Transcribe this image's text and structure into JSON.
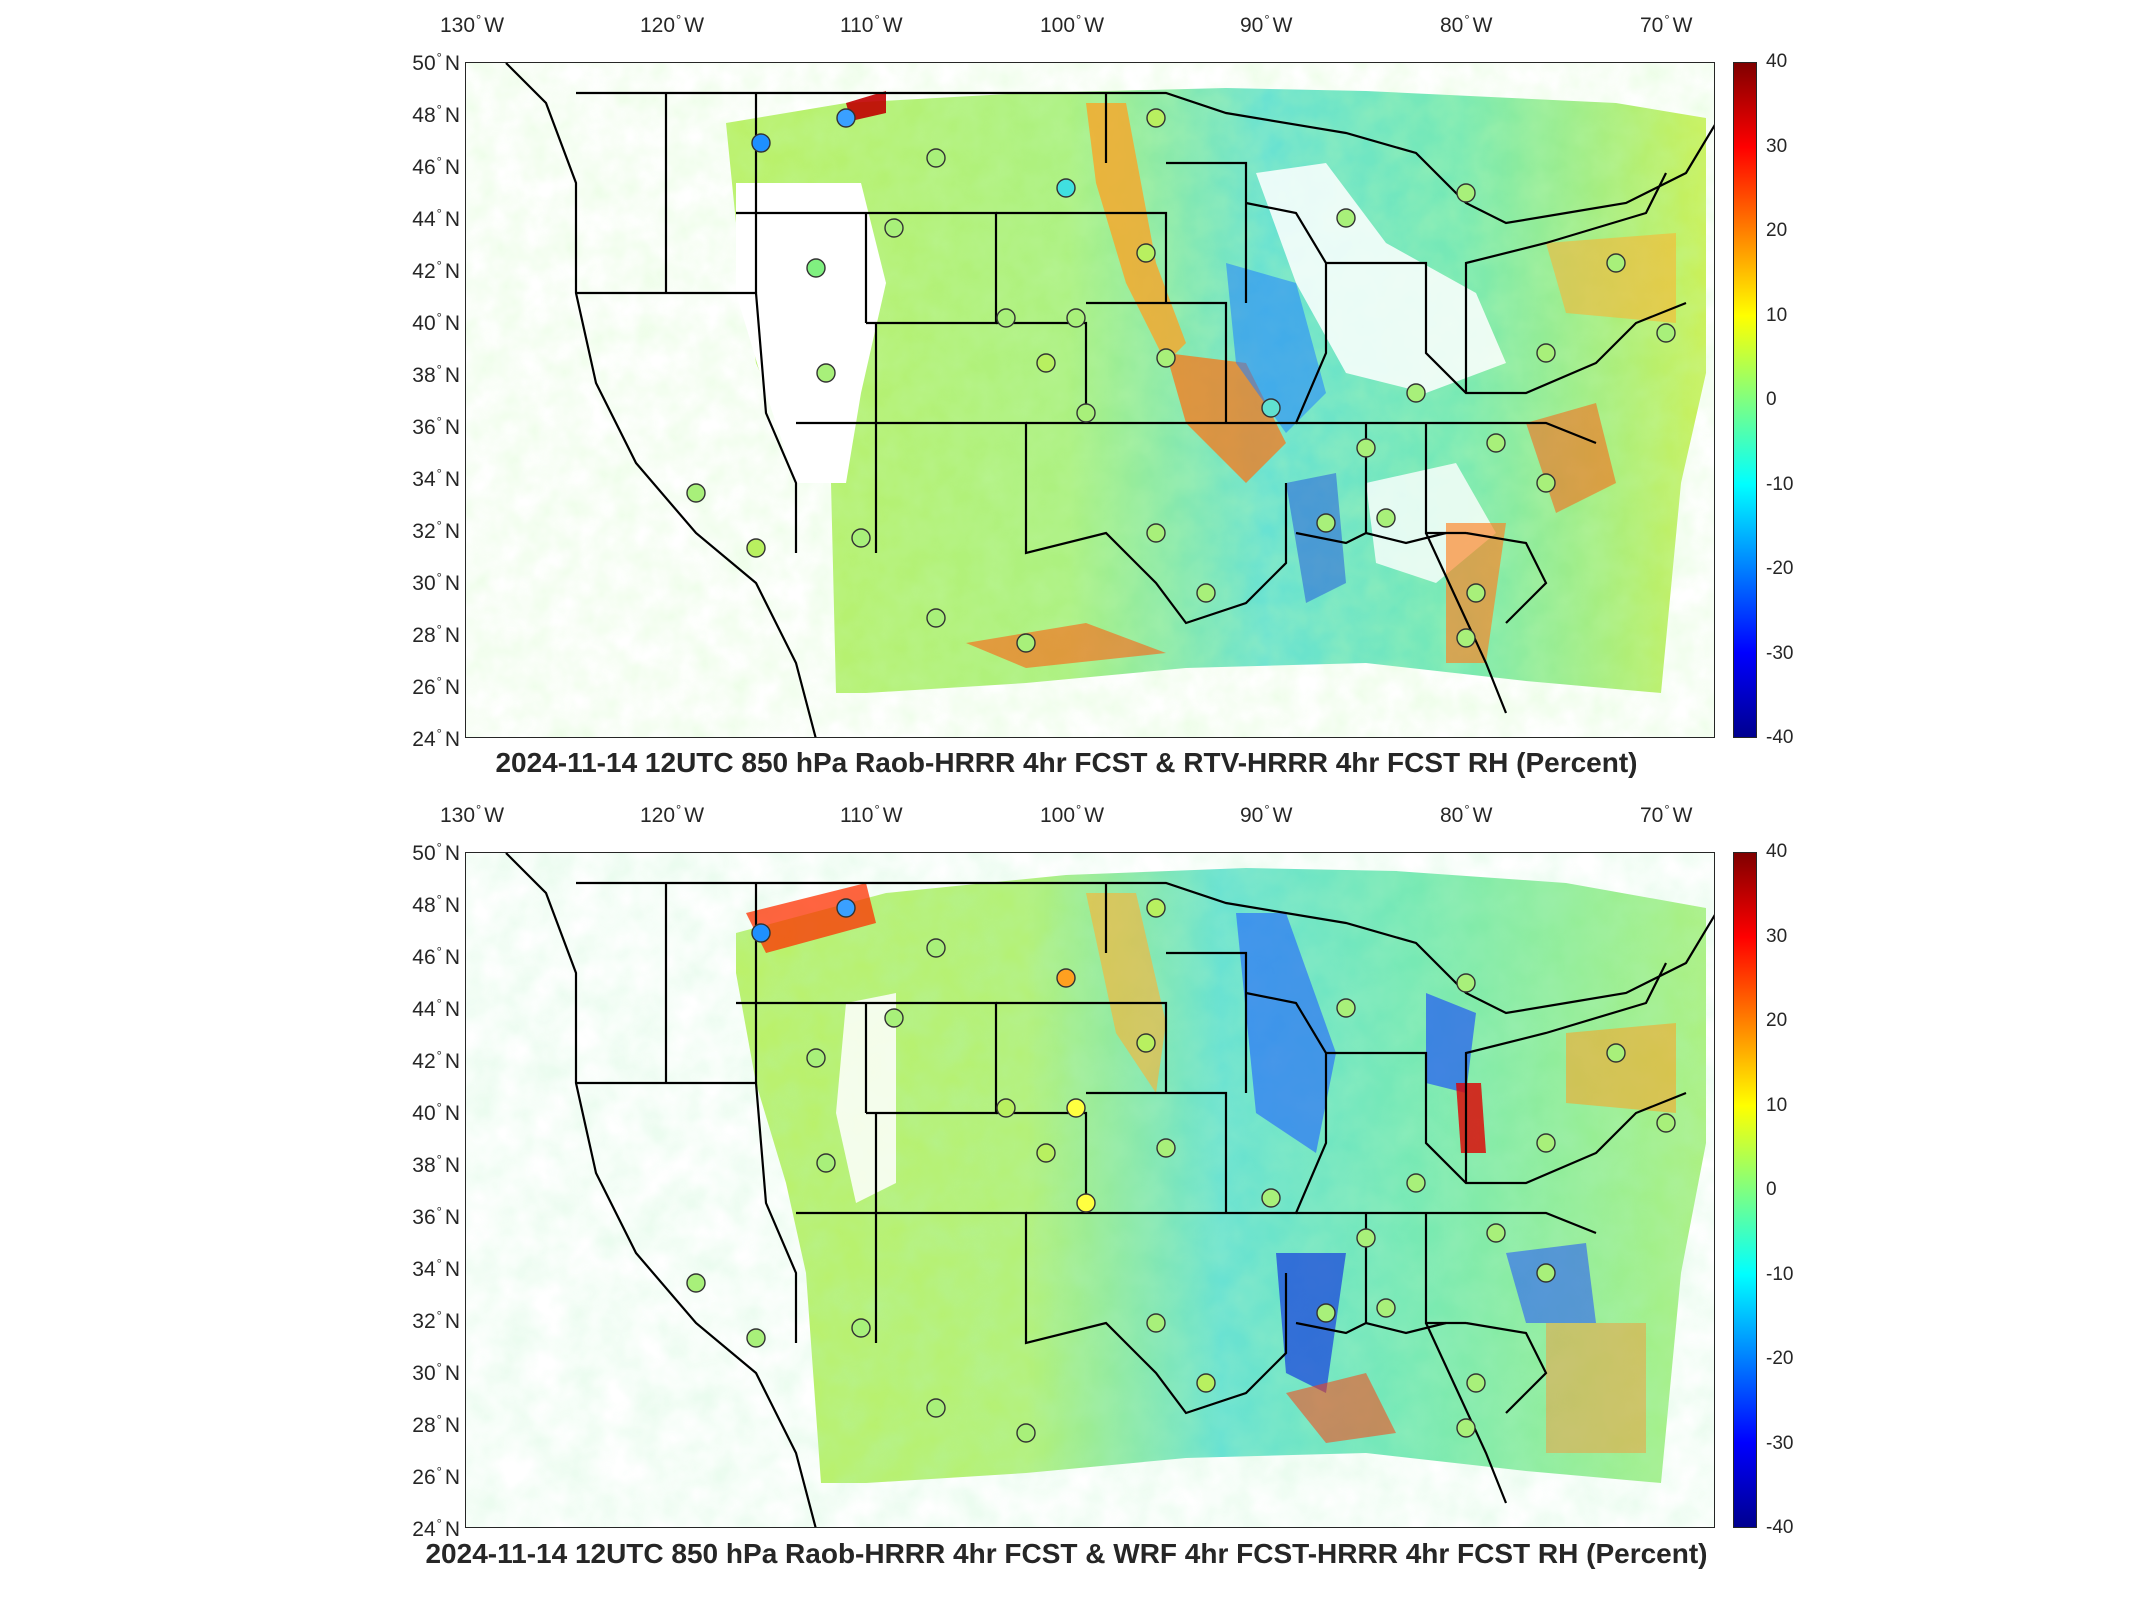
{
  "panels": [
    {
      "title": "2024-11-14 12UTC 850 hPa Raob-HRRR 4hr FCST & RTV-HRRR 4hr FCST RH (Percent)"
    },
    {
      "title": "2024-11-14 12UTC 850 hPa Raob-HRRR 4hr FCST & WRF 4hr FCST-HRRR 4hr FCST RH (Percent)"
    }
  ],
  "axes": {
    "lon_ticks": [
      "130",
      "120",
      "110",
      "100",
      "90",
      "80",
      "70"
    ],
    "lon_hemisphere": "W",
    "lat_ticks": [
      "50",
      "48",
      "46",
      "44",
      "42",
      "40",
      "38",
      "36",
      "34",
      "32",
      "30",
      "28",
      "26",
      "24"
    ],
    "lat_hemisphere": "N",
    "degree_symbol": "°"
  },
  "colorbar": {
    "ticks": [
      "40",
      "30",
      "20",
      "10",
      "0",
      "-10",
      "-20",
      "-30",
      "-40"
    ],
    "min": -40,
    "max": 40,
    "colors": [
      "#00008f",
      "#0000ff",
      "#0080ff",
      "#00ffff",
      "#80ff80",
      "#ffff00",
      "#ff8000",
      "#ff0000",
      "#800000"
    ]
  }
}
